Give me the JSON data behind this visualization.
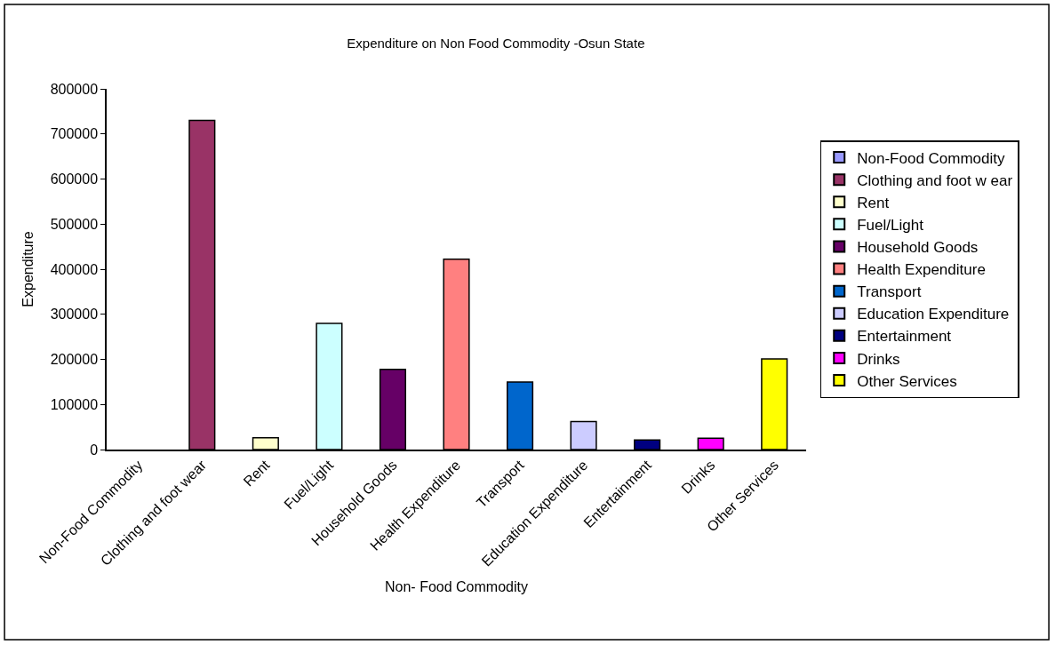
{
  "chart_data": {
    "type": "bar",
    "title": "Expenditure on Non Food Commodity -Osun State",
    "xlabel": "Non- Food Commodity",
    "ylabel": "Expenditure",
    "categories": [
      "Non-Food Commodity",
      "Clothing and foot wear",
      "Rent",
      "Fuel/Light",
      "Household Goods",
      "Health Expenditure",
      "Transport",
      "Education Expenditure",
      "Entertainment",
      "Drinks",
      "Other Services"
    ],
    "series": [
      {
        "name": "Non-Food Commodity",
        "color": "#9999ff",
        "values": [
          null,
          null,
          null,
          null,
          null,
          null,
          null,
          null,
          null,
          null,
          null
        ]
      },
      {
        "name": "Clothing and foot w ear",
        "color": "#993366",
        "values": [
          null,
          730000,
          null,
          null,
          null,
          null,
          null,
          null,
          null,
          null,
          null
        ]
      },
      {
        "name": "Rent",
        "color": "#ffffcc",
        "values": [
          null,
          null,
          26000,
          null,
          null,
          null,
          null,
          null,
          null,
          null,
          null
        ]
      },
      {
        "name": "Fuel/Light",
        "color": "#ccffff",
        "values": [
          null,
          null,
          null,
          280000,
          null,
          null,
          null,
          null,
          null,
          null,
          null
        ]
      },
      {
        "name": "Household Goods",
        "color": "#660066",
        "values": [
          null,
          null,
          null,
          null,
          178000,
          null,
          null,
          null,
          null,
          null,
          null
        ]
      },
      {
        "name": "Health Expenditure",
        "color": "#ff8080",
        "values": [
          null,
          null,
          null,
          null,
          null,
          422000,
          null,
          null,
          null,
          null,
          null
        ]
      },
      {
        "name": "Transport",
        "color": "#0066cc",
        "values": [
          null,
          null,
          null,
          null,
          null,
          null,
          150000,
          null,
          null,
          null,
          null
        ]
      },
      {
        "name": "Education Expenditure",
        "color": "#ccccff",
        "values": [
          null,
          null,
          null,
          null,
          null,
          null,
          null,
          62000,
          null,
          null,
          null
        ]
      },
      {
        "name": "Entertainment",
        "color": "#000080",
        "values": [
          null,
          null,
          null,
          null,
          null,
          null,
          null,
          null,
          21000,
          null,
          null
        ]
      },
      {
        "name": "Drinks",
        "color": "#ff00ff",
        "values": [
          null,
          null,
          null,
          null,
          null,
          null,
          null,
          null,
          null,
          25000,
          null
        ]
      },
      {
        "name": "Other Services",
        "color": "#ffff00",
        "values": [
          null,
          null,
          null,
          null,
          null,
          null,
          null,
          null,
          null,
          null,
          201000
        ]
      }
    ],
    "ylim": [
      0,
      800000
    ],
    "yticks": [
      0,
      100000,
      200000,
      300000,
      400000,
      500000,
      600000,
      700000,
      800000
    ],
    "legend": "right"
  }
}
